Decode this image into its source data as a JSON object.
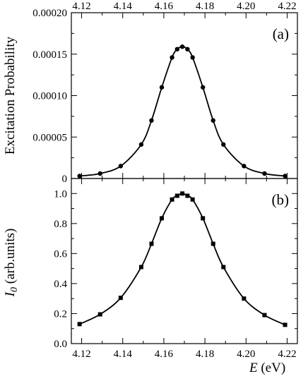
{
  "chart_data": [
    {
      "type": "scatter",
      "panel": "(a)",
      "ylabel": "Excitation Probability",
      "xlim": [
        4.115,
        4.225
      ],
      "ylim": [
        0,
        0.0002
      ],
      "xticks": [
        4.12,
        4.14,
        4.16,
        4.18,
        4.2,
        4.22
      ],
      "xtick_labels": [
        "4.12",
        "4.14",
        "4.16",
        "4.18",
        "4.20",
        "4.22"
      ],
      "yticks": [
        0,
        5e-05,
        0.0001,
        0.00015,
        0.0002
      ],
      "ytick_labels": [
        "0",
        "0.00005",
        "0.00010",
        "0.00015",
        "0.00020"
      ],
      "marker": "circle",
      "x": [
        4.119,
        4.129,
        4.139,
        4.149,
        4.154,
        4.159,
        4.164,
        4.1665,
        4.169,
        4.1715,
        4.174,
        4.179,
        4.184,
        4.189,
        4.199,
        4.209,
        4.219
      ],
      "y": [
        3e-06,
        6e-06,
        1.5e-05,
        4.1e-05,
        7e-05,
        0.00011,
        0.000146,
        0.000156,
        0.000159,
        0.000156,
        0.000146,
        0.00011,
        7e-05,
        4.1e-05,
        1.5e-05,
        6e-06,
        3e-06
      ]
    },
    {
      "type": "scatter",
      "panel": "(b)",
      "ylabel_main": "I",
      "ylabel_sub": "0",
      "ylabel_rest": " (arb.units)",
      "xlabel_main": "E",
      "xlabel_rest": "  (eV)",
      "xlim": [
        4.115,
        4.225
      ],
      "ylim": [
        0,
        1.1
      ],
      "xticks": [
        4.12,
        4.14,
        4.16,
        4.18,
        4.2,
        4.22
      ],
      "xtick_labels": [
        "4.12",
        "4.14",
        "4.16",
        "4.18",
        "4.20",
        "4.22"
      ],
      "yticks": [
        0,
        0.2,
        0.4,
        0.6,
        0.8,
        1.0
      ],
      "ytick_labels": [
        "0.0",
        "0.2",
        "0.4",
        "0.6",
        "0.8",
        "1.0"
      ],
      "marker": "square",
      "x": [
        4.119,
        4.129,
        4.139,
        4.149,
        4.154,
        4.159,
        4.164,
        4.1665,
        4.169,
        4.1715,
        4.174,
        4.179,
        4.184,
        4.189,
        4.199,
        4.209,
        4.219
      ],
      "y": [
        0.13,
        0.195,
        0.305,
        0.51,
        0.665,
        0.835,
        0.96,
        0.985,
        1.0,
        0.985,
        0.96,
        0.835,
        0.665,
        0.51,
        0.3,
        0.19,
        0.125
      ]
    }
  ]
}
